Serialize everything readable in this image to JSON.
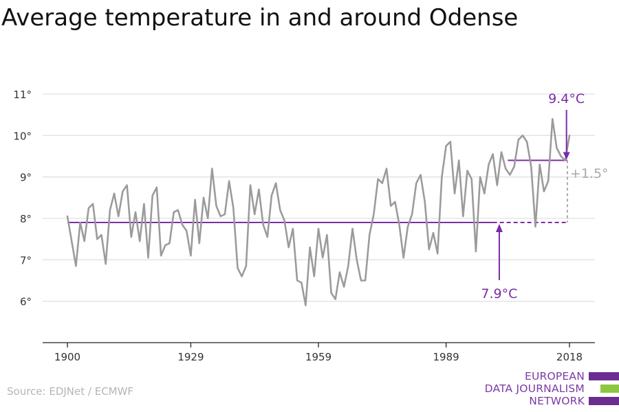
{
  "chart_data": {
    "type": "line",
    "title": "Average temperature in and around Odense",
    "xlabel": "",
    "ylabel": "",
    "xlim": [
      1900,
      2018
    ],
    "ylim": [
      5,
      11
    ],
    "x_ticks": [
      1900,
      1929,
      1959,
      1989,
      2018
    ],
    "x_tick_labels": [
      "1900",
      "1929",
      "1959",
      "1989",
      "2018"
    ],
    "y_ticks": [
      6,
      7,
      8,
      9,
      10,
      11
    ],
    "y_tick_labels": [
      "6°",
      "7°",
      "8°",
      "9°",
      "10°",
      "11°"
    ],
    "grid": true,
    "x": [
      1900,
      1901,
      1902,
      1903,
      1904,
      1905,
      1906,
      1907,
      1908,
      1909,
      1910,
      1911,
      1912,
      1913,
      1914,
      1915,
      1916,
      1917,
      1918,
      1919,
      1920,
      1921,
      1922,
      1923,
      1924,
      1925,
      1926,
      1927,
      1928,
      1929,
      1930,
      1931,
      1932,
      1933,
      1934,
      1935,
      1936,
      1937,
      1938,
      1939,
      1940,
      1941,
      1942,
      1943,
      1944,
      1945,
      1946,
      1947,
      1948,
      1949,
      1950,
      1951,
      1952,
      1953,
      1954,
      1955,
      1956,
      1957,
      1958,
      1959,
      1960,
      1961,
      1962,
      1963,
      1964,
      1965,
      1966,
      1967,
      1968,
      1969,
      1970,
      1971,
      1972,
      1973,
      1974,
      1975,
      1976,
      1977,
      1978,
      1979,
      1980,
      1981,
      1982,
      1983,
      1984,
      1985,
      1986,
      1987,
      1988,
      1989,
      1990,
      1991,
      1992,
      1993,
      1994,
      1995,
      1996,
      1997,
      1998,
      1999,
      2000,
      2001,
      2002,
      2003,
      2004,
      2005,
      2006,
      2007,
      2008,
      2009,
      2010,
      2011,
      2012,
      2013,
      2014,
      2015,
      2016,
      2017,
      2018
    ],
    "series": [
      {
        "values": [
          8.05,
          7.45,
          6.85,
          7.9,
          7.45,
          8.25,
          8.35,
          7.5,
          7.6,
          6.9,
          8.2,
          8.6,
          8.05,
          8.65,
          8.8,
          7.55,
          8.15,
          7.45,
          8.35,
          7.05,
          8.55,
          8.75,
          7.1,
          7.35,
          7.4,
          8.15,
          8.2,
          7.85,
          7.7,
          7.1,
          8.45,
          7.4,
          8.5,
          8.0,
          9.2,
          8.3,
          8.05,
          8.1,
          8.9,
          8.25,
          6.8,
          6.6,
          6.85,
          8.8,
          8.1,
          8.7,
          7.85,
          7.55,
          8.55,
          8.85,
          8.2,
          7.95,
          7.3,
          7.75,
          6.5,
          6.45,
          5.9,
          7.3,
          6.6,
          7.75,
          7.05,
          7.6,
          6.2,
          6.05,
          6.7,
          6.35,
          6.85,
          7.75,
          7.0,
          6.5,
          6.5,
          7.6,
          8.1,
          8.95,
          8.85,
          9.2,
          8.3,
          8.4,
          7.85,
          7.05,
          7.8,
          8.1,
          8.85,
          9.05,
          8.4,
          7.25,
          7.65,
          7.15,
          9.0,
          9.75,
          9.85,
          8.6,
          9.4,
          8.05,
          9.15,
          8.95,
          7.2,
          9.0,
          8.6,
          9.3,
          9.55,
          8.8,
          9.6,
          9.2,
          9.05,
          9.25,
          9.9,
          10.0,
          9.85,
          9.25,
          7.8,
          9.3,
          8.65,
          8.9,
          10.4,
          9.7,
          9.5,
          9.4,
          10.0
        ]
      }
    ],
    "annotations": {
      "baseline_value": 7.9,
      "baseline_label": "7.9°C",
      "recent_value": 9.4,
      "recent_label": "9.4°C",
      "diff_label": "+1.5°"
    },
    "colors": {
      "line": "#9b9b9b",
      "accent": "#7a2ba8",
      "diff": "#a8a8a8",
      "grid": "#e1e1e1",
      "axis": "#222222"
    }
  },
  "source": "Source: EDJNet / ECMWF",
  "logo": {
    "line1": "EUROPEAN",
    "line2": "DATA JOURNALISM",
    "line3": "NETWORK",
    "purple": "#6b2d91",
    "green": "#8dc63f"
  }
}
